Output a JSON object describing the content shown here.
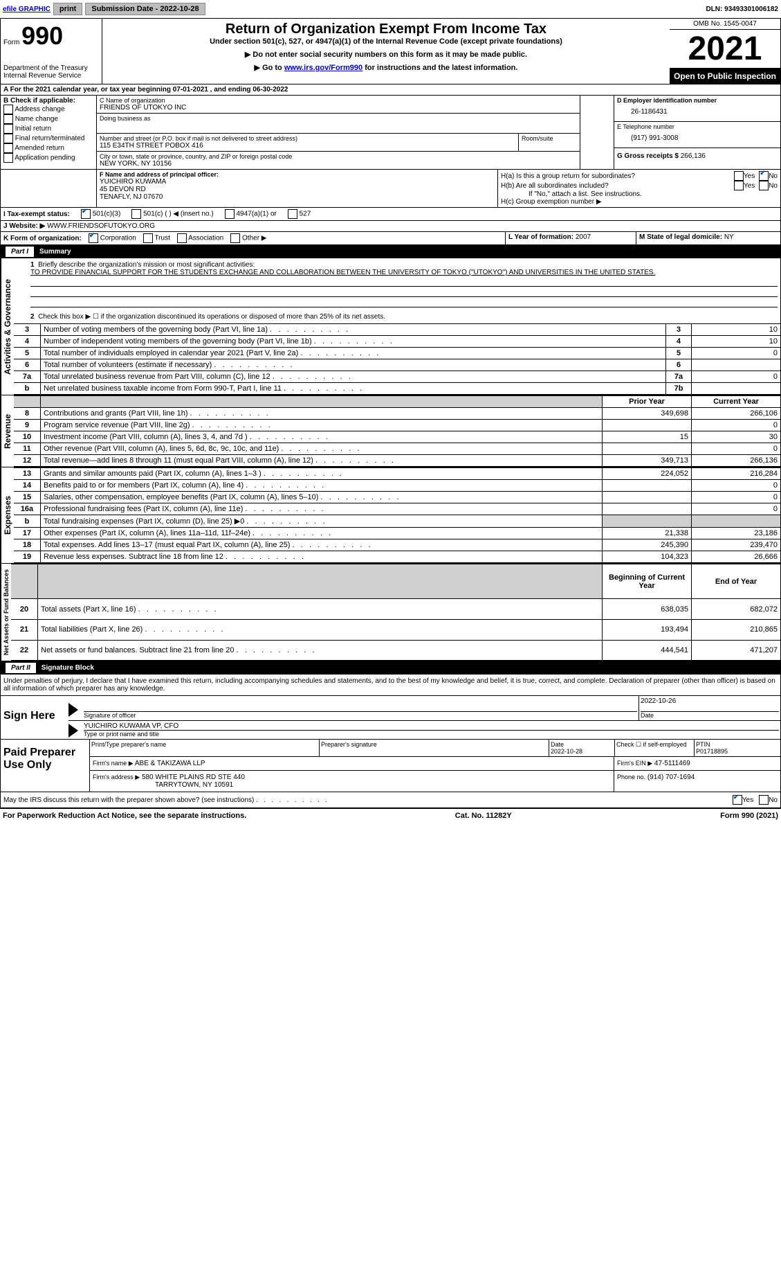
{
  "meta": {
    "efile_label": "efile GRAPHIC",
    "print_btn": "print",
    "submission_label": "Submission Date - 2022-10-28",
    "dln_label": "DLN: 93493301006182"
  },
  "header": {
    "form_label": "Form",
    "form_num": "990",
    "dept": "Department of the Treasury\nInternal Revenue Service",
    "title": "Return of Organization Exempt From Income Tax",
    "subtitle": "Under section 501(c), 527, or 4947(a)(1) of the Internal Revenue Code (except private foundations)",
    "note1": "▶ Do not enter social security numbers on this form as it may be made public.",
    "note2_pre": "▶ Go to ",
    "note2_link": "www.irs.gov/Form990",
    "note2_post": " for instructions and the latest information.",
    "omb": "OMB No. 1545-0047",
    "year": "2021",
    "open": "Open to Public Inspection"
  },
  "sectionA": {
    "a_line": "A For the 2021 calendar year, or tax year beginning 07-01-2021   , and ending 06-30-2022",
    "b_label": "B Check if applicable:",
    "b_items": [
      "Address change",
      "Name change",
      "Initial return",
      "Final return/terminated",
      "Amended return",
      "Application pending"
    ],
    "c_label": "C Name of organization",
    "c_name": "FRIENDS OF UTOKYO INC",
    "dba": "Doing business as",
    "addr_label": "Number and street (or P.O. box if mail is not delivered to street address)",
    "addr_room": "Room/suite",
    "addr": "115 E34TH STREET POBOX 416",
    "city_label": "City or town, state or province, country, and ZIP or foreign postal code",
    "city": "NEW YORK, NY  10156",
    "d_label": "D Employer identification number",
    "d_val": "26-1186431",
    "e_label": "E Telephone number",
    "e_val": "(917) 991-3008",
    "g_label": "G Gross receipts $",
    "g_val": "266,136",
    "f_label": "F Name and address of principal officer:",
    "f_name": "YUICHIRO KUWAMA",
    "f_addr1": "45 DEVON RD",
    "f_addr2": "TENAFLY, NJ  07670",
    "ha": "H(a)  Is this a group return for subordinates?",
    "hb": "H(b)  Are all subordinates included?",
    "h_note": "If \"No,\" attach a list. See instructions.",
    "hc": "H(c)  Group exemption number ▶",
    "yes": "Yes",
    "no": "No",
    "i_label": "I   Tax-exempt status:",
    "i_501c3": "501(c)(3)",
    "i_501c": "501(c) (  ) ◀ (insert no.)",
    "i_4947": "4947(a)(1) or",
    "i_527": "527",
    "j_label": "J   Website: ▶",
    "j_val": "WWW.FRIENDSOFUTOKYO.ORG",
    "k_label": "K Form of organization:",
    "k_corp": "Corporation",
    "k_trust": "Trust",
    "k_assoc": "Association",
    "k_other": "Other ▶",
    "l_label": "L Year of formation:",
    "l_val": "2007",
    "m_label": "M State of legal domicile:",
    "m_val": "NY"
  },
  "part1": {
    "title": "Summary",
    "q1_label": "Briefly describe the organization's mission or most significant activities:",
    "q1_text": "TO PROVIDE FINANCIAL SUPPORT FOR THE STUDENTS EXCHANGE AND COLLABORATION BETWEEN THE UNIVERSITY OF TOKYO (\"UTOKYO\") AND UNIVERSITIES IN THE UNITED STATES.",
    "q2": "Check this box ▶ ☐ if the organization discontinued its operations or disposed of more than 25% of its net assets.",
    "rows_gov": [
      {
        "n": "3",
        "t": "Number of voting members of the governing body (Part VI, line 1a)",
        "b": "3",
        "v": "10"
      },
      {
        "n": "4",
        "t": "Number of independent voting members of the governing body (Part VI, line 1b)",
        "b": "4",
        "v": "10"
      },
      {
        "n": "5",
        "t": "Total number of individuals employed in calendar year 2021 (Part V, line 2a)",
        "b": "5",
        "v": "0"
      },
      {
        "n": "6",
        "t": "Total number of volunteers (estimate if necessary)",
        "b": "6",
        "v": ""
      },
      {
        "n": "7a",
        "t": "Total unrelated business revenue from Part VIII, column (C), line 12",
        "b": "7a",
        "v": "0"
      },
      {
        "n": "b",
        "t": "Net unrelated business taxable income from Form 990-T, Part I, line 11",
        "b": "7b",
        "v": ""
      }
    ],
    "prior_hdr": "Prior Year",
    "curr_hdr": "Current Year",
    "rows_rev": [
      {
        "n": "8",
        "t": "Contributions and grants (Part VIII, line 1h)",
        "p": "349,698",
        "c": "266,106"
      },
      {
        "n": "9",
        "t": "Program service revenue (Part VIII, line 2g)",
        "p": "",
        "c": "0"
      },
      {
        "n": "10",
        "t": "Investment income (Part VIII, column (A), lines 3, 4, and 7d )",
        "p": "15",
        "c": "30"
      },
      {
        "n": "11",
        "t": "Other revenue (Part VIII, column (A), lines 5, 6d, 8c, 9c, 10c, and 11e)",
        "p": "",
        "c": "0"
      },
      {
        "n": "12",
        "t": "Total revenue—add lines 8 through 11 (must equal Part VIII, column (A), line 12)",
        "p": "349,713",
        "c": "266,136"
      }
    ],
    "rows_exp": [
      {
        "n": "13",
        "t": "Grants and similar amounts paid (Part IX, column (A), lines 1–3 )",
        "p": "224,052",
        "c": "216,284"
      },
      {
        "n": "14",
        "t": "Benefits paid to or for members (Part IX, column (A), line 4)",
        "p": "",
        "c": "0"
      },
      {
        "n": "15",
        "t": "Salaries, other compensation, employee benefits (Part IX, column (A), lines 5–10)",
        "p": "",
        "c": "0"
      },
      {
        "n": "16a",
        "t": "Professional fundraising fees (Part IX, column (A), line 11e)",
        "p": "",
        "c": "0"
      },
      {
        "n": "b",
        "t": "Total fundraising expenses (Part IX, column (D), line 25) ▶0",
        "p": "gray",
        "c": "gray"
      },
      {
        "n": "17",
        "t": "Other expenses (Part IX, column (A), lines 11a–11d, 11f–24e)",
        "p": "21,338",
        "c": "23,186"
      },
      {
        "n": "18",
        "t": "Total expenses. Add lines 13–17 (must equal Part IX, column (A), line 25)",
        "p": "245,390",
        "c": "239,470"
      },
      {
        "n": "19",
        "t": "Revenue less expenses. Subtract line 18 from line 12",
        "p": "104,323",
        "c": "26,666"
      }
    ],
    "beg_hdr": "Beginning of Current Year",
    "end_hdr": "End of Year",
    "rows_net": [
      {
        "n": "20",
        "t": "Total assets (Part X, line 16)",
        "p": "638,035",
        "c": "682,072"
      },
      {
        "n": "21",
        "t": "Total liabilities (Part X, line 26)",
        "p": "193,494",
        "c": "210,865"
      },
      {
        "n": "22",
        "t": "Net assets or fund balances. Subtract line 21 from line 20",
        "p": "444,541",
        "c": "471,207"
      }
    ],
    "side_gov": "Activities & Governance",
    "side_rev": "Revenue",
    "side_exp": "Expenses",
    "side_net": "Net Assets or Fund Balances"
  },
  "part2": {
    "title": "Signature Block",
    "decl": "Under penalties of perjury, I declare that I have examined this return, including accompanying schedules and statements, and to the best of my knowledge and belief, it is true, correct, and complete. Declaration of preparer (other than officer) is based on all information of which preparer has any knowledge.",
    "sign_here": "Sign Here",
    "sig_officer": "Signature of officer",
    "sig_date": "Date",
    "sig_date_val": "2022-10-26",
    "officer_name": "YUICHIRO KUWAMA  VP, CFO",
    "type_name": "Type or print name and title",
    "paid": "Paid Preparer Use Only",
    "prep_name_label": "Print/Type preparer's name",
    "prep_sig_label": "Preparer's signature",
    "prep_date_label": "Date",
    "prep_date": "2022-10-28",
    "check_self": "Check ☐ if self-employed",
    "ptin_label": "PTIN",
    "ptin": "P01718895",
    "firm_name_label": "Firm's name    ▶",
    "firm_name": "ABE & TAKIZAWA LLP",
    "firm_ein_label": "Firm's EIN ▶",
    "firm_ein": "47-5111469",
    "firm_addr_label": "Firm's address ▶",
    "firm_addr1": "580 WHITE PLAINS RD STE 440",
    "firm_addr2": "TARRYTOWN, NY  10591",
    "phone_label": "Phone no.",
    "phone": "(914) 707-1694",
    "may_irs": "May the IRS discuss this return with the preparer shown above? (see instructions)"
  },
  "footer": {
    "left": "For Paperwork Reduction Act Notice, see the separate instructions.",
    "mid": "Cat. No. 11282Y",
    "right": "Form 990 (2021)"
  }
}
